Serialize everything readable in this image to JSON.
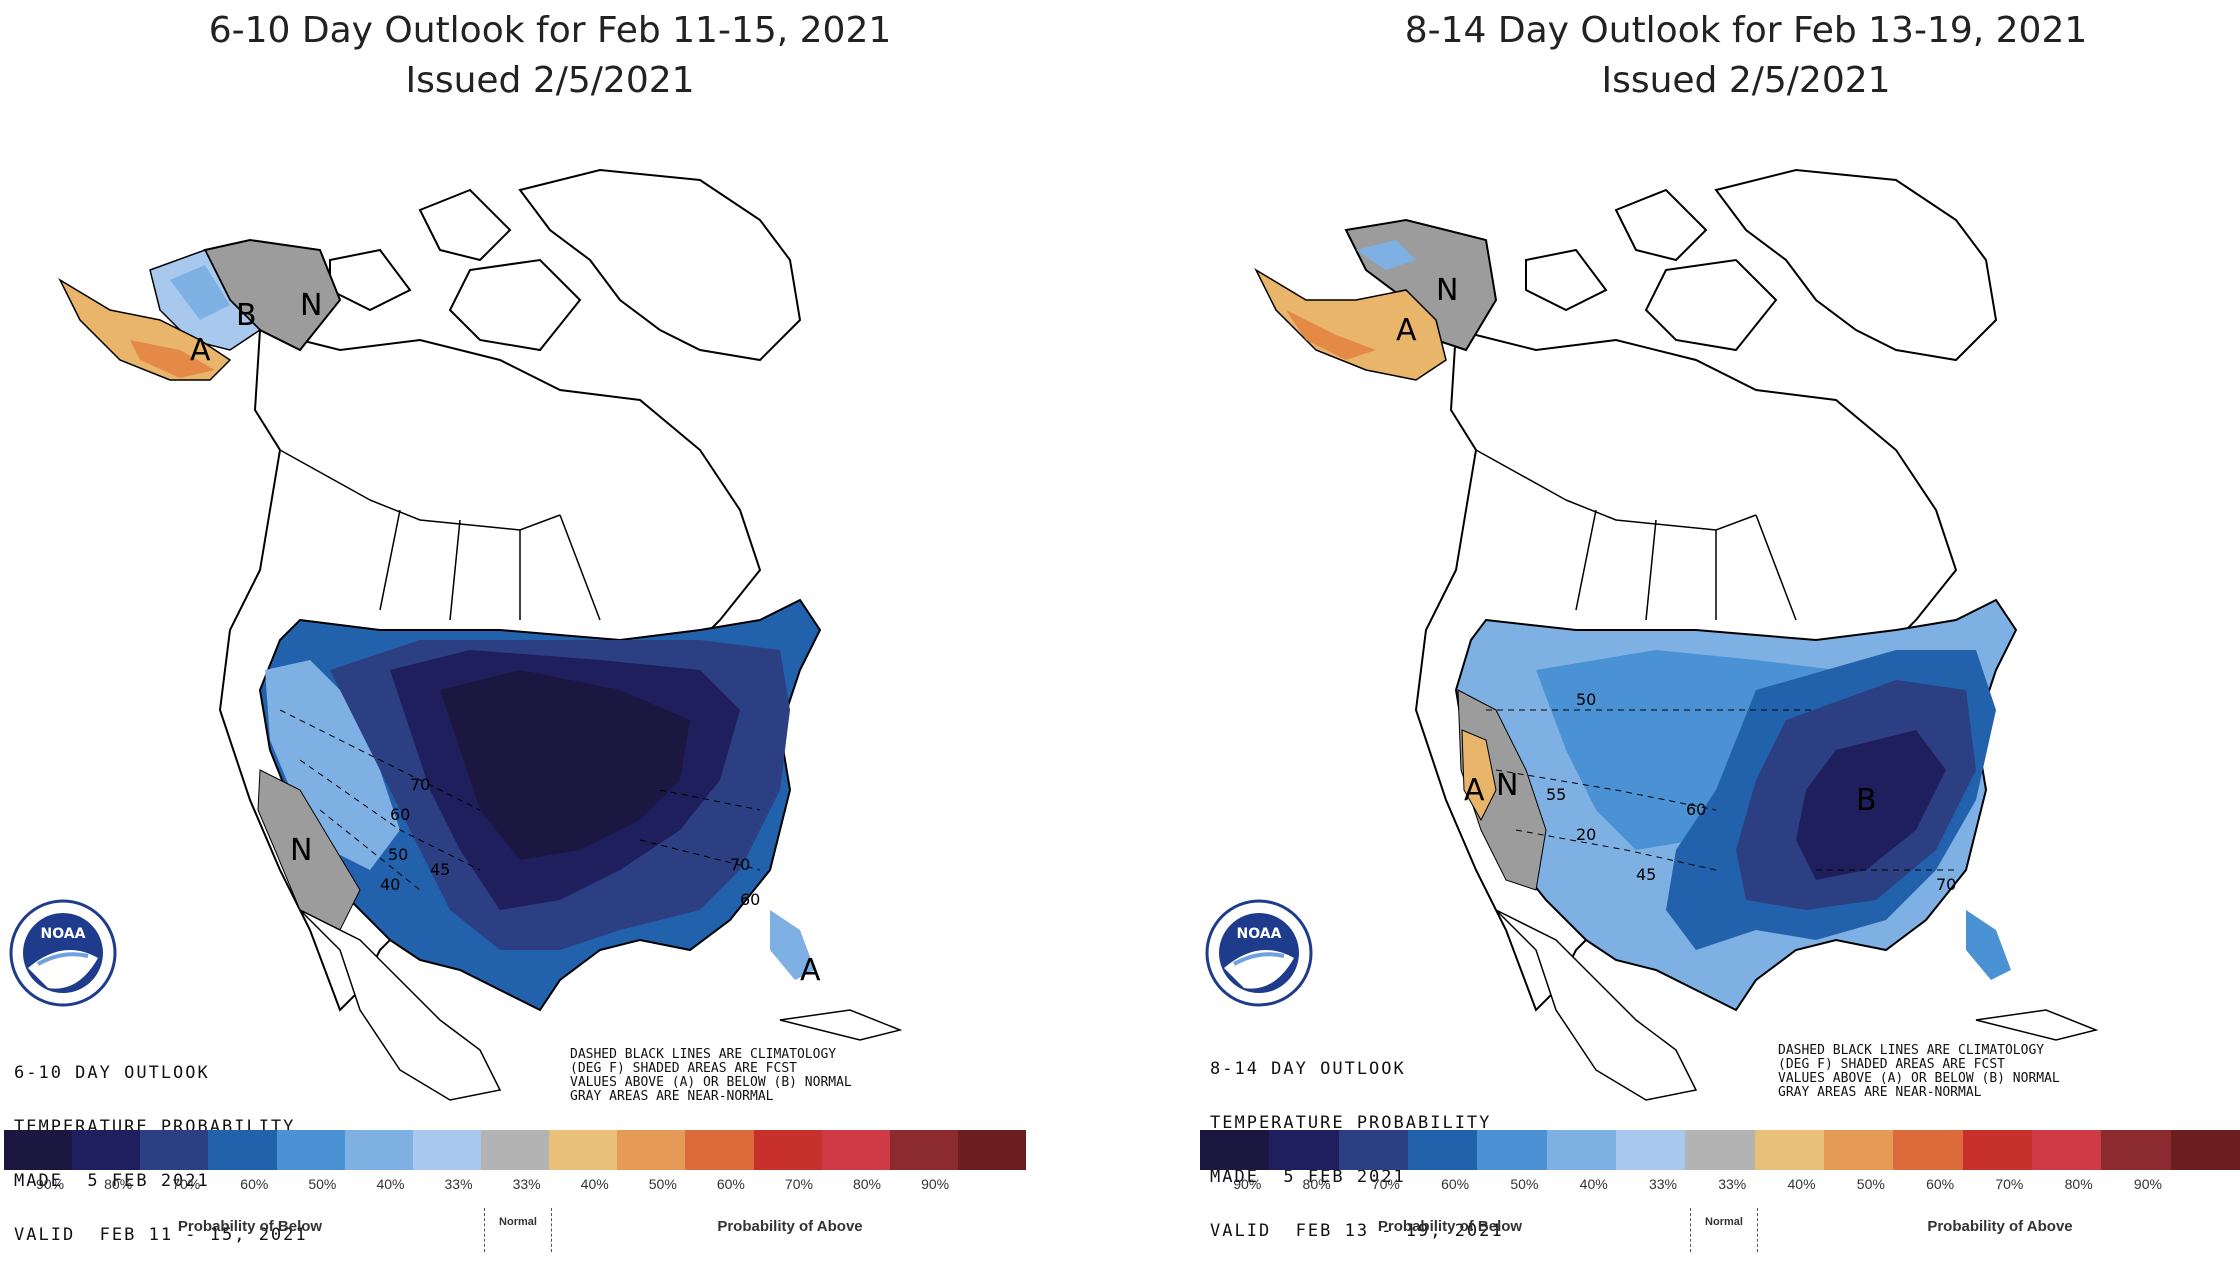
{
  "panels": [
    {
      "title_line1": "6-10 Day Outlook for Feb 11-15, 2021",
      "title_line2": "Issued 2/5/2021",
      "map_labels": {
        "outlook": "6-10 DAY OUTLOOK",
        "probability": "TEMPERATURE PROBABILITY",
        "made": "MADE  5 FEB 2021",
        "valid": "VALID  FEB 11 - 15, 2021",
        "note": "DASHED BLACK LINES ARE CLIMATOLOGY\n(DEG F) SHADED AREAS ARE FCST\nVALUES ABOVE (A) OR BELOW (B) NORMAL\nGRAY AREAS ARE NEAR-NORMAL"
      },
      "region_letters": [
        "B",
        "N",
        "A",
        "N",
        "A"
      ],
      "contour_labels": [
        "70",
        "60",
        "50",
        "40",
        "45",
        "70",
        "60"
      ]
    },
    {
      "title_line1": "8-14 Day Outlook for Feb 13-19, 2021",
      "title_line2": "Issued 2/5/2021",
      "map_labels": {
        "outlook": "8-14 DAY OUTLOOK",
        "probability": "TEMPERATURE PROBABILITY",
        "made": "MADE  5 FEB 2021",
        "valid": "VALID  FEB 13 - 19, 2021",
        "note": "DASHED BLACK LINES ARE CLIMATOLOGY\n(DEG F) SHADED AREAS ARE FCST\nVALUES ABOVE (A) OR BELOW (B) NORMAL\nGRAY AREAS ARE NEAR-NORMAL"
      },
      "region_letters": [
        "N",
        "A",
        "A",
        "N",
        "B"
      ],
      "contour_labels": [
        "50",
        "55",
        "60",
        "20",
        "45",
        "70"
      ]
    }
  ],
  "legend": {
    "tick_labels": [
      "90%",
      "80%",
      "70%",
      "60%",
      "50%",
      "40%",
      "33%",
      "33%",
      "40%",
      "50%",
      "60%",
      "70%",
      "80%",
      "90%"
    ],
    "below_label": "Probability of Below",
    "normal_label": "Normal",
    "above_label": "Probability of Above",
    "colors": [
      "#1b1741",
      "#1f1f5e",
      "#2c3f83",
      "#2262ac",
      "#4a92d4",
      "#7fb0e3",
      "#a9c8ed",
      "#b3b3b3",
      "#e8c07a",
      "#e59a55",
      "#dd6a3a",
      "#c8312b",
      "#cf3a47",
      "#8b2b2f",
      "#6a1e20"
    ]
  },
  "logo_text": "NOAA",
  "colors": {
    "below_90": "#1b1741",
    "below_80": "#1f1f5e",
    "below_70": "#2c3f83",
    "below_60": "#2262ac",
    "below_50": "#4a92d4",
    "below_40": "#7fb0e3",
    "below_33": "#a9c8ed",
    "near_normal": "#9c9c9c",
    "above_33": "#e8b56b",
    "above_40": "#e58a46"
  }
}
